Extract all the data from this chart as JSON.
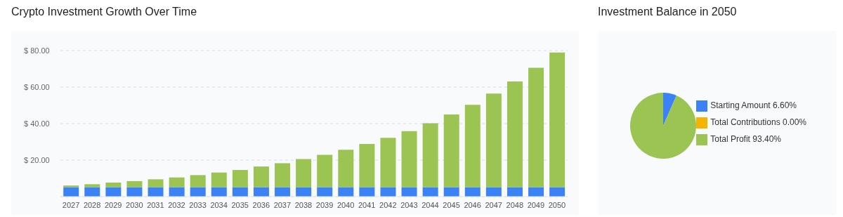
{
  "chart_data": [
    {
      "type": "bar",
      "title": "Crypto Investment Growth Over Time",
      "stacked": true,
      "categories": [
        "2027",
        "2028",
        "2029",
        "2030",
        "2031",
        "2032",
        "2033",
        "2034",
        "2035",
        "2036",
        "2037",
        "2038",
        "2039",
        "2040",
        "2041",
        "2042",
        "2043",
        "2044",
        "2045",
        "2046",
        "2047",
        "2048",
        "2049",
        "2050"
      ],
      "series": [
        {
          "color": "#3b82f6",
          "values": [
            5.2,
            5.2,
            5.2,
            5.2,
            5.2,
            5.2,
            5.2,
            5.2,
            5.2,
            5.2,
            5.2,
            5.2,
            5.2,
            5.2,
            5.2,
            5.2,
            5.2,
            5.2,
            5.2,
            5.2,
            5.2,
            5.2,
            5.2,
            5.2
          ]
        },
        {
          "color": "#9bc453",
          "values": [
            0.9,
            1.6,
            2.5,
            3.3,
            4.3,
            5.3,
            6.6,
            8.0,
            9.4,
            11.3,
            13.1,
            15.4,
            17.7,
            20.5,
            23.6,
            27.0,
            30.7,
            35.0,
            39.8,
            45.1,
            51.2,
            57.9,
            65.4,
            73.7
          ]
        }
      ],
      "ylim": [
        0,
        80
      ],
      "yticks": [
        {
          "value": 20,
          "label": "$ 20.00"
        },
        {
          "value": 40,
          "label": "$ 40.00"
        },
        {
          "value": 60,
          "label": "$ 60.00"
        },
        {
          "value": 80,
          "label": "$ 80.00"
        }
      ],
      "grid": "y"
    },
    {
      "type": "pie",
      "title": "Investment Balance in 2050",
      "categories": [
        "Starting Amount",
        "Total Contributions",
        "Total Profit"
      ],
      "values": [
        6.6,
        0,
        93.4
      ],
      "value_labels": [
        "6.60%",
        "0.00%",
        "93.40%"
      ],
      "colors": [
        "#3b82f6",
        "#f4b400",
        "#9bc453"
      ],
      "legend": "right"
    }
  ]
}
